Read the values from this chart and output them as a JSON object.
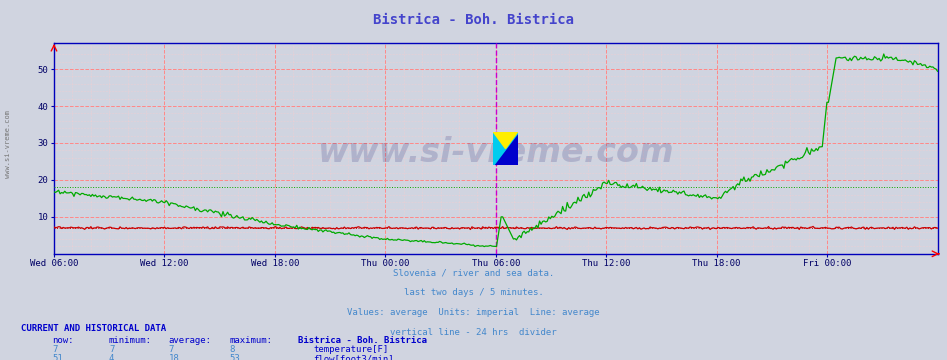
{
  "title": "Bistrica - Boh. Bistrica",
  "title_color": "#4444cc",
  "bg_color": "#d0d4e0",
  "plot_bg_color": "#d0d4e0",
  "grid_color_major": "#ff8888",
  "grid_color_minor": "#ffcccc",
  "x_tick_labels": [
    "Wed 06:00",
    "Wed 12:00",
    "Wed 18:00",
    "Thu 00:00",
    "Thu 06:00",
    "Thu 12:00",
    "Thu 18:00",
    "Fri 00:00"
  ],
  "x_tick_positions": [
    0.0,
    0.125,
    0.25,
    0.375,
    0.5,
    0.625,
    0.75,
    0.875
  ],
  "ylim": [
    0,
    57
  ],
  "yticks": [
    10,
    20,
    30,
    40,
    50
  ],
  "temp_color": "#cc0000",
  "flow_color": "#00aa00",
  "vline_color": "#cc00cc",
  "vline_pos": 0.5,
  "watermark_text": "www.si-vreme.com",
  "watermark_color": "#1a1a6e",
  "watermark_alpha": 0.18,
  "footer_lines": [
    "Slovenia / river and sea data.",
    "last two days / 5 minutes.",
    "Values: average  Units: imperial  Line: average",
    "vertical line - 24 hrs  divider"
  ],
  "footer_color": "#4488cc",
  "table_header_color": "#0000cc",
  "table_data_color": "#4488cc",
  "table_title": "CURRENT AND HISTORICAL DATA",
  "temp_avg_line": 7,
  "flow_avg_line": 18,
  "temp_now": 7,
  "temp_min": 7,
  "temp_avg": 7,
  "temp_max": 8,
  "flow_now": 51,
  "flow_min": 4,
  "flow_avg": 18,
  "flow_max": 53
}
